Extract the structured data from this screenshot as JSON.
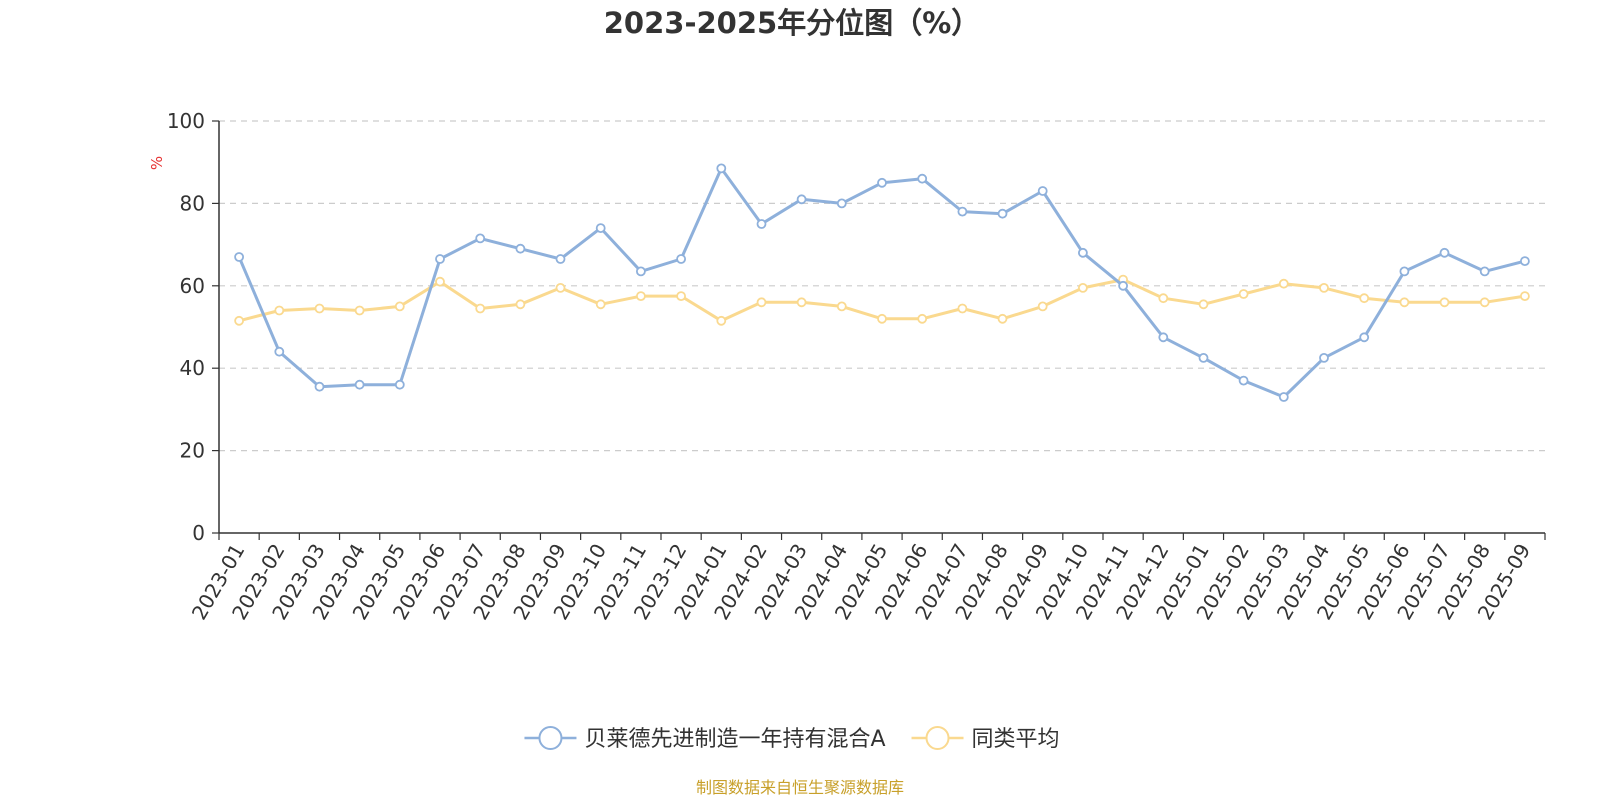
{
  "chart_data": {
    "type": "line",
    "title": "2023-2025年分位图（%）",
    "ylabel": "%",
    "ylim": [
      0,
      100
    ],
    "yticks": [
      0,
      20,
      40,
      60,
      80,
      100
    ],
    "grid": true,
    "legend_position": "bottom-center",
    "categories": [
      "2023-01",
      "2023-02",
      "2023-03",
      "2023-04",
      "2023-05",
      "2023-06",
      "2023-07",
      "2023-08",
      "2023-09",
      "2023-10",
      "2023-11",
      "2023-12",
      "2024-01",
      "2024-02",
      "2024-03",
      "2024-04",
      "2024-05",
      "2024-06",
      "2024-07",
      "2024-08",
      "2024-09",
      "2024-10",
      "2024-11",
      "2024-12",
      "2025-01",
      "2025-02",
      "2025-03",
      "2025-04",
      "2025-05",
      "2025-06",
      "2025-07",
      "2025-08",
      "2025-09"
    ],
    "series": [
      {
        "name": "贝莱德先进制造一年持有混合A",
        "color": "#8eb0db",
        "values": [
          67,
          44,
          35.5,
          36,
          36,
          66.5,
          71.5,
          69,
          66.5,
          74,
          63.5,
          66.5,
          88.5,
          75,
          81,
          80,
          85,
          86,
          78,
          77.5,
          83,
          68,
          60,
          47.5,
          42.5,
          37,
          33,
          42.5,
          47.5,
          63.5,
          68,
          63.5,
          66
        ]
      },
      {
        "name": "同类平均",
        "color": "#fad98f",
        "values": [
          51.5,
          54,
          54.5,
          54,
          55,
          61,
          54.5,
          55.5,
          59.5,
          55.5,
          57.5,
          57.5,
          51.5,
          56,
          56,
          55,
          52,
          52,
          54.5,
          52,
          55,
          59.5,
          61.5,
          57,
          55.5,
          58,
          60.5,
          59.5,
          57,
          56,
          56,
          56,
          57.5
        ]
      }
    ]
  },
  "footer": {
    "source_text": "制图数据来自恒生聚源数据库"
  }
}
